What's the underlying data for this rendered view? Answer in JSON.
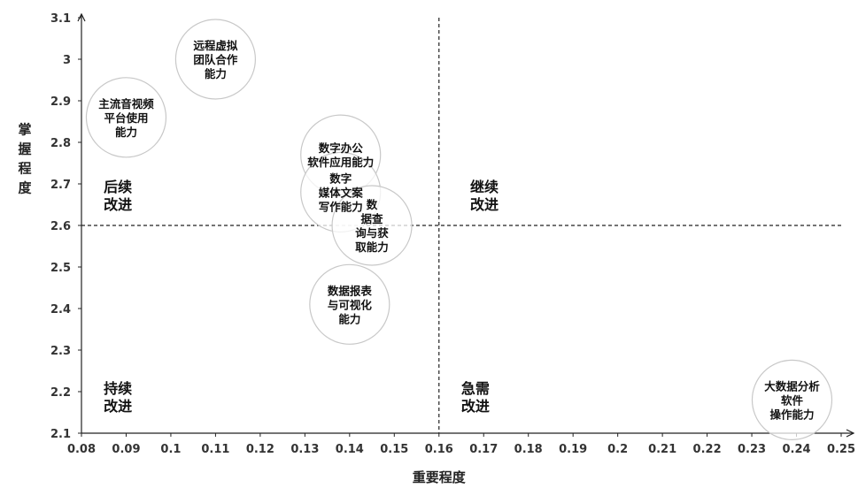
{
  "chart_data": {
    "type": "scatter",
    "xlabel": "重要程度",
    "ylabel": "掌握程度",
    "xlim": [
      0.08,
      0.25
    ],
    "ylim": [
      2.1,
      3.1
    ],
    "x_ticks": [
      "0.08",
      "0.09",
      "0.1",
      "0.11",
      "0.12",
      "0.13",
      "0.14",
      "0.15",
      "0.16",
      "0.17",
      "0.18",
      "0.19",
      "0.2",
      "0.21",
      "0.22",
      "0.23",
      "0.24",
      "0.25"
    ],
    "y_ticks": [
      "2.1",
      "2.2",
      "2.3",
      "2.4",
      "2.5",
      "2.6",
      "2.7",
      "2.8",
      "2.9",
      "3",
      "3.1"
    ],
    "threshold_x": 0.16,
    "threshold_y": 2.6,
    "quadrants": [
      {
        "label": "后续\n改进",
        "x": 0.083,
        "y": 2.655
      },
      {
        "label": "继续\n改进",
        "x": 0.165,
        "y": 2.655
      },
      {
        "label": "持续\n改进",
        "x": 0.083,
        "y": 2.17
      },
      {
        "label": "急需\n改进",
        "x": 0.163,
        "y": 2.17
      }
    ],
    "points": [
      {
        "label": "远程虚拟\n团队合作\n能力",
        "x": 0.11,
        "y": 3.0
      },
      {
        "label": "主流音视频\n平台使用\n能力",
        "x": 0.09,
        "y": 2.86
      },
      {
        "label": "数字办公\n软件应用能力",
        "x": 0.138,
        "y": 2.77
      },
      {
        "label": "数字\n媒体文案\n写作能力",
        "x": 0.138,
        "y": 2.68
      },
      {
        "label": "数\n据查\n询与获\n取能力",
        "x": 0.145,
        "y": 2.6
      },
      {
        "label": "数据报表\n与可视化\n能力",
        "x": 0.14,
        "y": 2.41
      },
      {
        "label": "大数据分析\n软件\n操作能力",
        "x": 0.239,
        "y": 2.18
      }
    ]
  }
}
